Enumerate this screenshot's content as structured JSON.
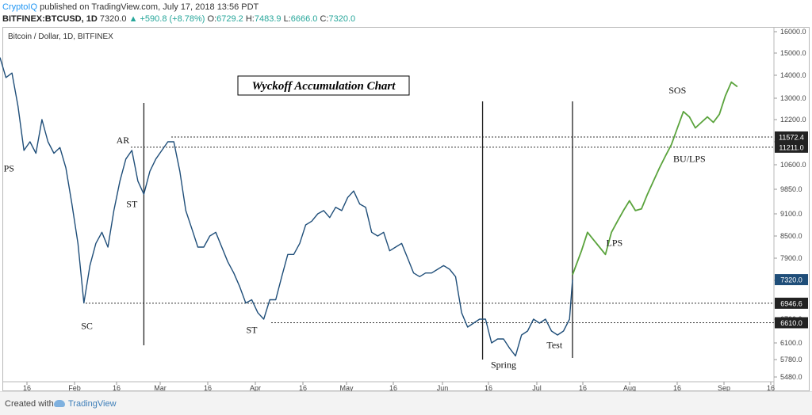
{
  "header": {
    "publisher": "CryptoIQ",
    "published_text": "published on TradingView.com, July 17, 2018 13:56 PDT",
    "symbol": "BITFINEX:BTCUSD, 1D",
    "last": "7320.0",
    "change": "▲ +590.8 (+8.78%)",
    "o_label": "O:",
    "o_val": "6729.2",
    "h_label": "H:",
    "h_val": "7483.9",
    "l_label": "L:",
    "l_val": "6666.0",
    "c_label": "C:",
    "c_val": "7320.0"
  },
  "chart_data": {
    "type": "line",
    "legend_title": "Bitcoin / Dollar, 1D, BITFINEX",
    "annotation_title": "Wyckoff Accumulation Chart",
    "y_ticks": [
      16000,
      15000,
      14000,
      13000,
      12200,
      11400,
      10600,
      9850,
      9100,
      8500,
      7900,
      7300,
      6700,
      6100,
      5780,
      5480
    ],
    "ylim": [
      5480,
      16000
    ],
    "x_ticks": [
      "16",
      "Feb",
      "16",
      "Mar",
      "16",
      "Apr",
      "16",
      "May",
      "16",
      "Jun",
      "16",
      "Jul",
      "16",
      "Aug",
      "16",
      "Sep",
      "16"
    ],
    "price_labels": [
      {
        "text": "11572.4",
        "value": 11572.4,
        "color": "#222222"
      },
      {
        "text": "11211.0",
        "value": 11211.0,
        "color": "#222222"
      },
      {
        "text": "7320.0",
        "value": 7320.0,
        "color": "#1f4e79"
      },
      {
        "text": "6946.6",
        "value": 6946.6,
        "color": "#222222"
      },
      {
        "text": "6610.0",
        "value": 6610.0,
        "color": "#222222"
      }
    ],
    "series": [
      {
        "color": "#1f4e79",
        "x": [
          "2018-01-07",
          "2018-01-09",
          "2018-01-11",
          "2018-01-13",
          "2018-01-15",
          "2018-01-17",
          "2018-01-19",
          "2018-01-21",
          "2018-01-23",
          "2018-01-25",
          "2018-01-27",
          "2018-01-29",
          "2018-01-31",
          "2018-02-02",
          "2018-02-04",
          "2018-02-06",
          "2018-02-08",
          "2018-02-10",
          "2018-02-12",
          "2018-02-14",
          "2018-02-16",
          "2018-02-18",
          "2018-02-20",
          "2018-02-22",
          "2018-02-24",
          "2018-02-26",
          "2018-02-28",
          "2018-03-02",
          "2018-03-04",
          "2018-03-06",
          "2018-03-08",
          "2018-03-10",
          "2018-03-12",
          "2018-03-14",
          "2018-03-16",
          "2018-03-18",
          "2018-03-20",
          "2018-03-22",
          "2018-03-24",
          "2018-03-26",
          "2018-03-28",
          "2018-03-30",
          "2018-04-01",
          "2018-04-03",
          "2018-04-05",
          "2018-04-07",
          "2018-04-09",
          "2018-04-11",
          "2018-04-13",
          "2018-04-15",
          "2018-04-17",
          "2018-04-19",
          "2018-04-21",
          "2018-04-23",
          "2018-04-25",
          "2018-04-27",
          "2018-04-29",
          "2018-05-01",
          "2018-05-03",
          "2018-05-05",
          "2018-05-07",
          "2018-05-09",
          "2018-05-11",
          "2018-05-13",
          "2018-05-15",
          "2018-05-17",
          "2018-05-19",
          "2018-05-21",
          "2018-05-23",
          "2018-05-25",
          "2018-05-27",
          "2018-05-29",
          "2018-05-31",
          "2018-06-02",
          "2018-06-04",
          "2018-06-06",
          "2018-06-08",
          "2018-06-10",
          "2018-06-12",
          "2018-06-14",
          "2018-06-16",
          "2018-06-18",
          "2018-06-20",
          "2018-06-22",
          "2018-06-24",
          "2018-06-26",
          "2018-06-28",
          "2018-06-30",
          "2018-07-02",
          "2018-07-04",
          "2018-07-06",
          "2018-07-08",
          "2018-07-10",
          "2018-07-12",
          "2018-07-14",
          "2018-07-16",
          "2018-07-17"
        ],
        "values": [
          14800,
          13900,
          14100,
          12700,
          11100,
          11400,
          11000,
          12200,
          11400,
          11000,
          11200,
          10500,
          9400,
          8300,
          6950,
          7700,
          8300,
          8600,
          8200,
          9200,
          10100,
          10800,
          11100,
          10100,
          9700,
          10400,
          10800,
          11100,
          11400,
          11400,
          10400,
          9200,
          8700,
          8200,
          8200,
          8500,
          8600,
          8200,
          7800,
          7500,
          7200,
          6950,
          7000,
          6800,
          6700,
          7000,
          7000,
          7400,
          8000,
          8000,
          8300,
          8800,
          8900,
          9100,
          9200,
          9000,
          9300,
          9200,
          9600,
          9800,
          9400,
          9300,
          8600,
          8500,
          8600,
          8100,
          8200,
          8300,
          7900,
          7500,
          7400,
          7500,
          7500,
          7600,
          7700,
          7600,
          7400,
          6800,
          6500,
          6600,
          6700,
          6700,
          6100,
          6200,
          6200,
          6000,
          5850,
          6300,
          6400,
          6700,
          6600,
          6700,
          6400,
          6300,
          6400,
          6700,
          7320
        ]
      },
      {
        "color": "#5aa33c",
        "x": [
          "2018-07-17",
          "2018-07-20",
          "2018-07-22",
          "2018-07-24",
          "2018-07-26",
          "2018-07-28",
          "2018-07-30",
          "2018-08-01",
          "2018-08-03",
          "2018-08-05",
          "2018-08-07",
          "2018-08-09",
          "2018-08-11",
          "2018-08-13",
          "2018-08-15",
          "2018-08-17",
          "2018-08-19",
          "2018-08-21",
          "2018-08-23",
          "2018-08-25",
          "2018-08-27",
          "2018-08-29",
          "2018-08-31",
          "2018-09-02",
          "2018-09-04",
          "2018-09-06",
          "2018-09-08",
          "2018-09-10"
        ],
        "values": [
          7450,
          8100,
          8600,
          8400,
          8200,
          8000,
          8600,
          8900,
          9200,
          9500,
          9200,
          9250,
          9700,
          10100,
          10500,
          10900,
          11300,
          11900,
          12500,
          12300,
          11900,
          12100,
          12300,
          12100,
          12400,
          13100,
          13700,
          13500
        ]
      }
    ],
    "dotted_levels": [
      {
        "value": 11572.4
      },
      {
        "value": 11211.0
      },
      {
        "value": 6946.6
      },
      {
        "value": 6610.0
      }
    ],
    "vertical_markers": [
      "2018-02-24",
      "2018-06-17",
      "2018-07-17"
    ],
    "annotations": [
      {
        "text": "PS",
        "x": "2018-01-10",
        "y": 10400
      },
      {
        "text": "SC",
        "x": "2018-02-05",
        "y": 6450
      },
      {
        "text": "AR",
        "x": "2018-02-17",
        "y": 11350
      },
      {
        "text": "ST",
        "x": "2018-02-20",
        "y": 9300
      },
      {
        "text": "ST",
        "x": "2018-04-01",
        "y": 6350
      },
      {
        "text": "Spring",
        "x": "2018-06-24",
        "y": 5640
      },
      {
        "text": "Test",
        "x": "2018-07-11",
        "y": 6000
      },
      {
        "text": "LPS",
        "x": "2018-07-31",
        "y": 8230
      },
      {
        "text": "BU/LPS",
        "x": "2018-08-25",
        "y": 10700
      },
      {
        "text": "SOS",
        "x": "2018-08-21",
        "y": 13200
      }
    ]
  },
  "footer": {
    "created_with": "Created with",
    "tradingview": "TradingView"
  }
}
